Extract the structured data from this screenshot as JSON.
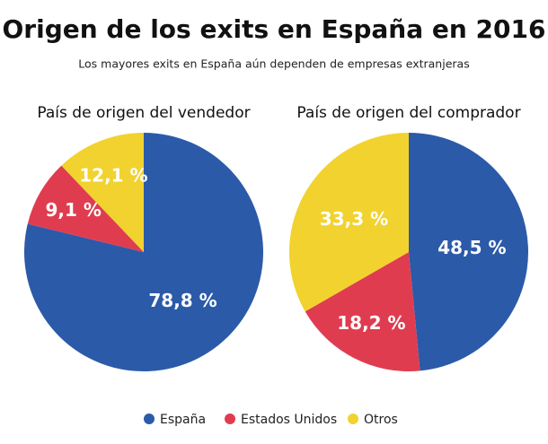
{
  "title": "Origen de los exits en España en 2016",
  "subtitle": "Los mayores exits en España aún dependen de empresas extranjeras",
  "chart_data": [
    {
      "type": "pie",
      "title": "País de origen del vendedor",
      "categories": [
        "España",
        "Estados Unidos",
        "Otros"
      ],
      "values": [
        78.8,
        9.1,
        12.1
      ],
      "value_labels": [
        "78,8 %",
        "9,1 %",
        "12,1 %"
      ],
      "colors": [
        "#2b5aa8",
        "#e03c50",
        "#f2d22e"
      ]
    },
    {
      "type": "pie",
      "title": "País de origen del comprador",
      "categories": [
        "España",
        "Estados Unidos",
        "Otros"
      ],
      "values": [
        48.5,
        18.2,
        33.3
      ],
      "value_labels": [
        "48,5 %",
        "18,2 %",
        "33,3 %"
      ],
      "colors": [
        "#2b5aa8",
        "#e03c50",
        "#f2d22e"
      ]
    }
  ]
}
